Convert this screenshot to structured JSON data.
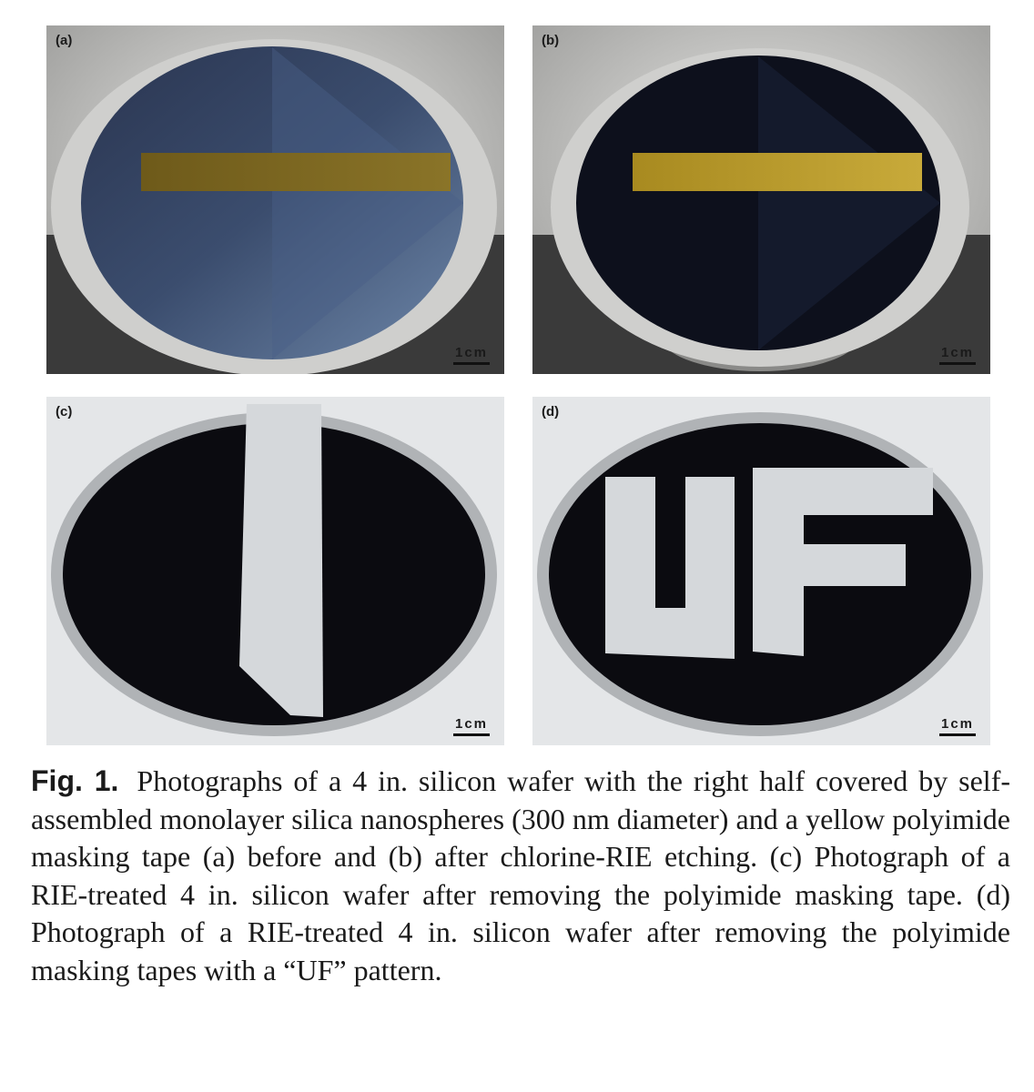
{
  "panels": [
    {
      "id": "a",
      "label": "(a)",
      "scale": "1cm"
    },
    {
      "id": "b",
      "label": "(b)",
      "scale": "1cm"
    },
    {
      "id": "c",
      "label": "(c)",
      "scale": "1cm"
    },
    {
      "id": "d",
      "label": "(d)",
      "scale": "1cm"
    }
  ],
  "figure": {
    "label": "Fig. 1.",
    "caption": "Photographs of a 4 in. silicon wafer with the right half covered by self-assembled monolayer silica nanospheres (300 nm diameter) and a yellow polyimide masking tape (a) before and (b) after chlorine-RIE etching. (c) Photograph of a RIE-treated 4 in. silicon wafer after removing the polyimide masking tape. (d) Photograph of a RIE-treated 4 in. silicon wafer after removing the polyimide masking tapes with a “UF” pattern."
  },
  "colors": {
    "wafer_dark": "#0d0f1a",
    "wafer_blue": "#3c4f6e",
    "tape_yellow": "#b89a2a",
    "metal_gray": "#b8b8b8",
    "exposed_silver": "#d9dcdf"
  }
}
